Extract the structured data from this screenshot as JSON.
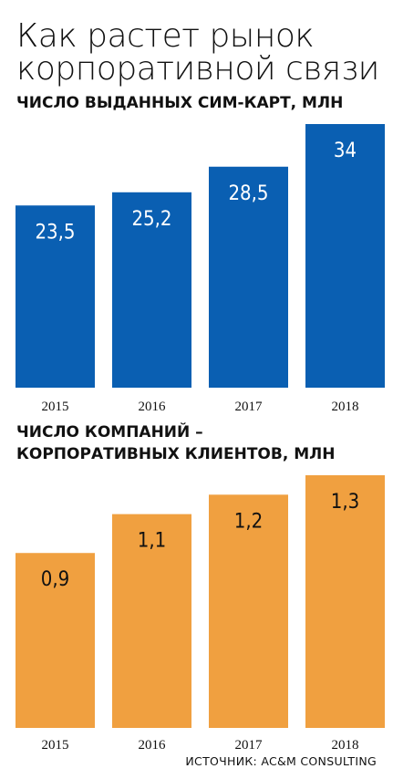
{
  "title_lines": [
    "Как растет рынок",
    "корпоративной связи"
  ],
  "colors": {
    "blue": "#0a5fb2",
    "orange": "#f0a040"
  },
  "chart_data": [
    {
      "type": "bar",
      "title": "ЧИСЛО ВЫДАННЫХ СИМ-КАРТ, МЛН",
      "categories": [
        "2015",
        "2016",
        "2017",
        "2018"
      ],
      "values": [
        23.5,
        25.2,
        28.5,
        34
      ],
      "value_labels": [
        "23,5",
        "25,2",
        "28,5",
        "34"
      ],
      "ylim": [
        0,
        34
      ],
      "grid": false
    },
    {
      "type": "bar",
      "title_lines": [
        "ЧИСЛО КОМПАНИЙ –",
        "КОРПОРАТИВНЫХ КЛИЕНТОВ, МЛН"
      ],
      "categories": [
        "2015",
        "2016",
        "2017",
        "2018"
      ],
      "values": [
        0.9,
        1.1,
        1.2,
        1.3
      ],
      "value_labels": [
        "0,9",
        "1,1",
        "1,2",
        "1,3"
      ],
      "ylim": [
        0,
        1.3
      ],
      "grid": false
    }
  ],
  "source": "ИСТОЧНИК: AC&M CONSULTING"
}
